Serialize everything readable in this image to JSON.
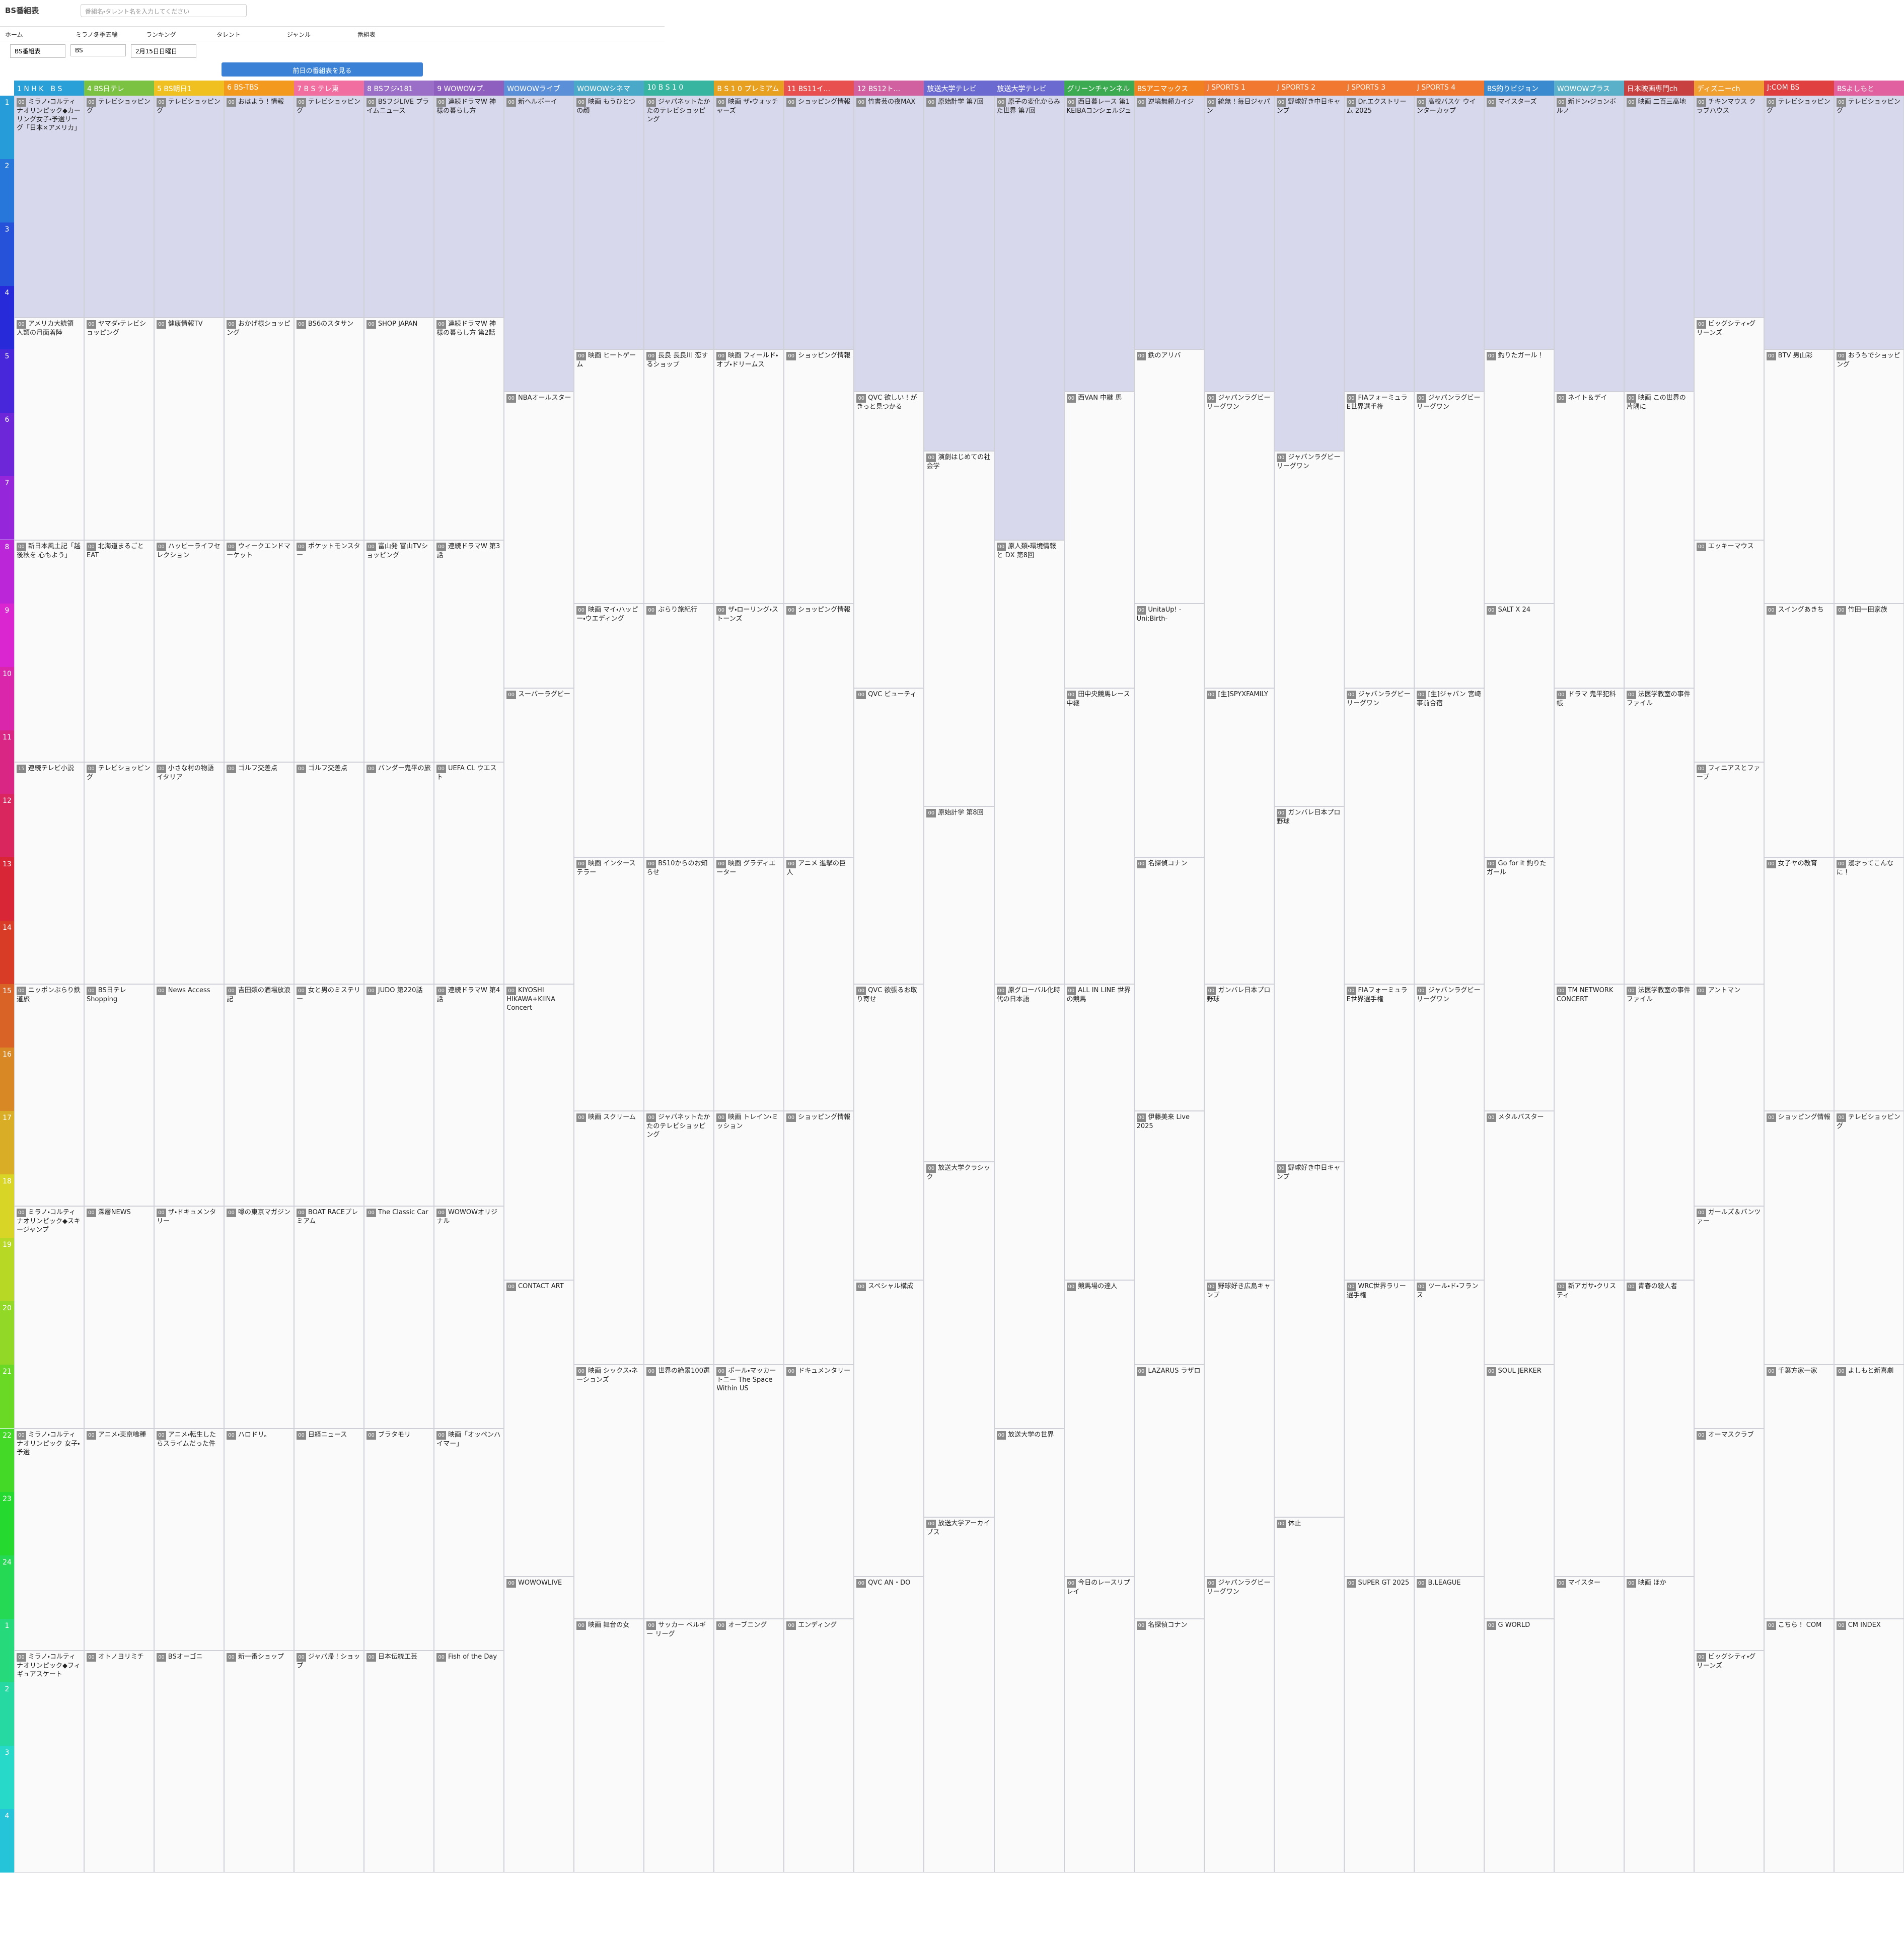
{
  "header": {
    "logo": "BS番組表",
    "search_placeholder": "番組名・タレント名を入力してください"
  },
  "nav": [
    "ホーム",
    "ミラノ冬季五輪",
    "ランキング",
    "タレント",
    "ジャンル",
    "番組表"
  ],
  "selectors": [
    "BS番組表",
    "BS",
    "2月15日日曜日"
  ],
  "prev_button": "前日の番組表を見る",
  "hours": [
    "1",
    "2",
    "3",
    "4",
    "5",
    "6",
    "7",
    "8",
    "9",
    "10",
    "11",
    "12",
    "13",
    "14",
    "15",
    "16",
    "17",
    "18",
    "19",
    "20",
    "21",
    "22",
    "23",
    "24",
    "1",
    "2",
    "3",
    "4"
  ],
  "channels": [
    {
      "name": "1 N H K　B S",
      "color": "#2aa0d8",
      "programs": [
        {
          "minute": "00",
          "title": "ミラノ・コルティナオリンピック◆カーリング女子・予選リーグ「日本×アメリカ」"
        },
        {
          "minute": "00",
          "title": "アメリカ大統領 人類の月面着陸"
        },
        {
          "minute": "00",
          "title": "新日本風土記「越後秋を 心もよう」"
        },
        {
          "minute": "15",
          "title": "連続テレビ小説"
        },
        {
          "minute": "00",
          "title": "ニッポンぶらり鉄道旅"
        },
        {
          "minute": "00",
          "title": "ミラノ・コルティナオリンピック◆スキージャンプ"
        },
        {
          "minute": "00",
          "title": "ミラノ・コルティナオリンピック 女子・予選"
        },
        {
          "minute": "00",
          "title": "ミラノ・コルティナオリンピック◆フィギュアスケート"
        }
      ]
    },
    {
      "name": "4 BS日テレ",
      "color": "#7cc242",
      "programs": [
        {
          "minute": "00",
          "title": "テレビショッピング"
        },
        {
          "minute": "00",
          "title": "ヤマダ・テレビショッピング"
        },
        {
          "minute": "00",
          "title": "北海道まるごとEAT"
        },
        {
          "minute": "00",
          "title": "テレビショッピング"
        },
        {
          "minute": "00",
          "title": "BS日テレ Shopping"
        },
        {
          "minute": "00",
          "title": "深層NEWS"
        },
        {
          "minute": "00",
          "title": "アニメ・東京喰種"
        },
        {
          "minute": "00",
          "title": "オトノヨリミチ"
        }
      ]
    },
    {
      "name": "5 BS朝日1",
      "color": "#f0c020",
      "programs": [
        {
          "minute": "00",
          "title": "テレビショッピング"
        },
        {
          "minute": "00",
          "title": "健康情報TV"
        },
        {
          "minute": "00",
          "title": "ハッピーライフセレクション"
        },
        {
          "minute": "00",
          "title": "小さな村の物語 イタリア"
        },
        {
          "minute": "00",
          "title": "News Access"
        },
        {
          "minute": "00",
          "title": "ザ・ドキュメンタリー"
        },
        {
          "minute": "00",
          "title": "アニメ・転生したらスライムだった件"
        },
        {
          "minute": "00",
          "title": "BSオーゴニ"
        }
      ]
    },
    {
      "name": "6 BS-TBS",
      "color": "#f39a1e",
      "programs": [
        {
          "minute": "00",
          "title": "おはよう！情報"
        },
        {
          "minute": "00",
          "title": "おかげ様ショッピング"
        },
        {
          "minute": "00",
          "title": "ウィークエンドマーケット"
        },
        {
          "minute": "00",
          "title": "ゴルフ交差点"
        },
        {
          "minute": "00",
          "title": "吉田類の酒場放浪記"
        },
        {
          "minute": "00",
          "title": "噂の東京マガジン"
        },
        {
          "minute": "00",
          "title": "ハロドリ。"
        },
        {
          "minute": "00",
          "title": "新一番ショップ"
        }
      ]
    },
    {
      "name": "7 B S テレ東",
      "color": "#f06ea0",
      "programs": [
        {
          "minute": "00",
          "title": "テレビショッピング"
        },
        {
          "minute": "00",
          "title": "BS6のスタサン"
        },
        {
          "minute": "00",
          "title": "ポケットモンスター"
        },
        {
          "minute": "00",
          "title": "ゴルフ交差点"
        },
        {
          "minute": "00",
          "title": "女と男のミステリー"
        },
        {
          "minute": "00",
          "title": "BOAT RACEプレミアム"
        },
        {
          "minute": "00",
          "title": "日経ニュース"
        },
        {
          "minute": "00",
          "title": "ジャパ帰！ショップ"
        }
      ]
    },
    {
      "name": "8 BSフジ・181",
      "color": "#9b6fc8",
      "programs": [
        {
          "minute": "00",
          "title": "BSフジLIVE プライムニュース"
        },
        {
          "minute": "00",
          "title": "SHOP JAPAN"
        },
        {
          "minute": "00",
          "title": "富山発 富山TVショッピング"
        },
        {
          "minute": "00",
          "title": "パンダー鬼平の旅"
        },
        {
          "minute": "00",
          "title": "JUDO 第220話"
        },
        {
          "minute": "00",
          "title": "The Classic Car"
        },
        {
          "minute": "00",
          "title": "ブラタモリ"
        },
        {
          "minute": "00",
          "title": "日本伝統工芸"
        }
      ]
    },
    {
      "name": "9 WOWOWプ.",
      "color": "#8f5fc0",
      "programs": [
        {
          "minute": "00",
          "title": "連続ドラマW 神様の暮らし方"
        },
        {
          "minute": "00",
          "title": "連続ドラマW 神様の暮らし方 第2話"
        },
        {
          "minute": "00",
          "title": "連続ドラマW 第3話"
        },
        {
          "minute": "00",
          "title": "UEFA CL ウエスト"
        },
        {
          "minute": "00",
          "title": "連続ドラマW 第4話"
        },
        {
          "minute": "00",
          "title": "WOWOWオリジナル"
        },
        {
          "minute": "00",
          "title": "映画「オッペンハイマー」"
        },
        {
          "minute": "00",
          "title": "Fish of the Day"
        }
      ]
    },
    {
      "name": "WOWOWライブ",
      "color": "#5b8fd8",
      "programs": [
        {
          "minute": "00",
          "title": "新ヘルボーイ"
        },
        {
          "minute": "00",
          "title": "NBAオールスター"
        },
        {
          "minute": "00",
          "title": "スーパーラグビー"
        },
        {
          "minute": "00",
          "title": "KIYOSHI HIKAWA+KIINA Concert"
        },
        {
          "minute": "00",
          "title": "CONTACT ART"
        },
        {
          "minute": "00",
          "title": "WOWOWLIVE"
        }
      ]
    },
    {
      "name": "WOWOWシネマ",
      "color": "#4aa8c8",
      "programs": [
        {
          "minute": "00",
          "title": "映画 もうひとつの顔"
        },
        {
          "minute": "00",
          "title": "映画 ヒートゲーム"
        },
        {
          "minute": "00",
          "title": "映画 マイ・ハッピー・ウエディング"
        },
        {
          "minute": "00",
          "title": "映画 インターステラー"
        },
        {
          "minute": "00",
          "title": "映画 スクリーム"
        },
        {
          "minute": "00",
          "title": "映画 シックス・ネーションズ"
        },
        {
          "minute": "00",
          "title": "映画 舞台の女"
        }
      ]
    },
    {
      "name": "10 B S 1 0",
      "color": "#37b5a0",
      "programs": [
        {
          "minute": "00",
          "title": "ジャパネットたかたのテレビショッピング"
        },
        {
          "minute": "00",
          "title": "長良 長良川 恋するショップ"
        },
        {
          "minute": "00",
          "title": "ぶらり旅紀行"
        },
        {
          "minute": "00",
          "title": "BS10からのお知らせ"
        },
        {
          "minute": "00",
          "title": "ジャパネットたかたのテレビショッピング"
        },
        {
          "minute": "00",
          "title": "世界の絶景100選"
        },
        {
          "minute": "00",
          "title": "サッカー ベルギー リーグ"
        }
      ]
    },
    {
      "name": "B S 1 0 プレミアム",
      "color": "#e8a020",
      "programs": [
        {
          "minute": "00",
          "title": "映画 ザ・ウォッチャーズ"
        },
        {
          "minute": "00",
          "title": "映画 フィールド・オブ・ドリームス"
        },
        {
          "minute": "00",
          "title": "ザ・ローリング・ストーンズ"
        },
        {
          "minute": "00",
          "title": "映画 グラディエーター"
        },
        {
          "minute": "00",
          "title": "映画 トレイン・ミッション"
        },
        {
          "minute": "00",
          "title": "ポール・マッカートニー The Space Within US"
        },
        {
          "minute": "00",
          "title": "オーブニング"
        }
      ]
    },
    {
      "name": "11 BS11イ...",
      "color": "#e85050",
      "programs": [
        {
          "minute": "00",
          "title": "ショッピング情報"
        },
        {
          "minute": "00",
          "title": "ショッピング情報"
        },
        {
          "minute": "00",
          "title": "ショッピング情報"
        },
        {
          "minute": "00",
          "title": "アニメ 進撃の巨人"
        },
        {
          "minute": "00",
          "title": "ショッピング情報"
        },
        {
          "minute": "00",
          "title": "ドキュメンタリー"
        },
        {
          "minute": "00",
          "title": "エンディング"
        }
      ]
    },
    {
      "name": "12 BS12ト...",
      "color": "#d060a0",
      "programs": [
        {
          "minute": "00",
          "title": "竹書芸の夜MAX"
        },
        {
          "minute": "00",
          "title": "QVC 欲しい！がきっと見つかる"
        },
        {
          "minute": "00",
          "title": "QVC ビューティ"
        },
        {
          "minute": "00",
          "title": "QVC 欲張るお取り寄せ"
        },
        {
          "minute": "00",
          "title": "スペシャル構成"
        },
        {
          "minute": "00",
          "title": "QVC AN・DO"
        }
      ]
    },
    {
      "name": "放送大学テレビ",
      "color": "#6a6ad0",
      "programs": [
        {
          "minute": "00",
          "title": "原始計学 第7回"
        },
        {
          "minute": "00",
          "title": "演劇はじめての社会学"
        },
        {
          "minute": "00",
          "title": "原始計学 第8回"
        },
        {
          "minute": "00",
          "title": "放送大学クラシック"
        },
        {
          "minute": "00",
          "title": "放送大学アーカイブス"
        }
      ]
    },
    {
      "name": "放送大学テレビ",
      "color": "#6a6ad0",
      "programs": [
        {
          "minute": "00",
          "title": "原子の変化からみた世界 第7回"
        },
        {
          "minute": "00",
          "title": "原人類・環境情報と DX 第8回"
        },
        {
          "minute": "00",
          "title": "原グローバル化時代の日本語"
        },
        {
          "minute": "00",
          "title": "放送大学の世界"
        }
      ]
    },
    {
      "name": "グリーンチャンネル",
      "color": "#3caa50",
      "programs": [
        {
          "minute": "00",
          "title": "西日暮レース 第1 KEIBAコンシェルジュ"
        },
        {
          "minute": "00",
          "title": "西VAN 中継 馬"
        },
        {
          "minute": "00",
          "title": "田中央競馬レース中継"
        },
        {
          "minute": "00",
          "title": "ALL IN LINE 世界の競馬"
        },
        {
          "minute": "00",
          "title": "競馬場の達人"
        },
        {
          "minute": "00",
          "title": "今日のレースリプレイ"
        }
      ]
    },
    {
      "name": "BSアニマックス",
      "color": "#f08020",
      "programs": [
        {
          "minute": "00",
          "title": "逆境無頼カイジ"
        },
        {
          "minute": "00",
          "title": "鉄のアリバ"
        },
        {
          "minute": "00",
          "title": "UnitaUp! -Uni:Birth-"
        },
        {
          "minute": "00",
          "title": "名探偵コナン"
        },
        {
          "minute": "00",
          "title": "伊藤美来 Live 2025"
        },
        {
          "minute": "00",
          "title": "LAZARUS ラザロ"
        },
        {
          "minute": "00",
          "title": "名探偵コナン"
        }
      ]
    },
    {
      "name": "J SPORTS 1",
      "color": "#f07830",
      "programs": [
        {
          "minute": "00",
          "title": "統無！毎日ジャパン"
        },
        {
          "minute": "00",
          "title": "ジャパンラグビー リーグワン"
        },
        {
          "minute": "00",
          "title": "[生]SPYXFAMILY"
        },
        {
          "minute": "00",
          "title": "ガンバレ日本プロ野球"
        },
        {
          "minute": "00",
          "title": "野球好き広島キャンプ"
        },
        {
          "minute": "00",
          "title": "ジャパンラグビー リーグワン"
        }
      ]
    },
    {
      "name": "J SPORTS 2",
      "color": "#f07830",
      "programs": [
        {
          "minute": "00",
          "title": "野球好き中日キャンプ"
        },
        {
          "minute": "00",
          "title": "ジャパンラグビー リーグワン"
        },
        {
          "minute": "00",
          "title": "ガンバレ日本プロ野球"
        },
        {
          "minute": "00",
          "title": "野球好き中日キャンプ"
        },
        {
          "minute": "00",
          "title": "休止"
        }
      ]
    },
    {
      "name": "J SPORTS 3",
      "color": "#f07830",
      "programs": [
        {
          "minute": "00",
          "title": "Dr.エクストリーム 2025"
        },
        {
          "minute": "00",
          "title": "FIAフォーミュラE世界選手権"
        },
        {
          "minute": "00",
          "title": "ジャパンラグビー リーグワン"
        },
        {
          "minute": "00",
          "title": "FIAフォーミュラE世界選手権"
        },
        {
          "minute": "00",
          "title": "WRC世界ラリー選手権"
        },
        {
          "minute": "00",
          "title": "SUPER GT 2025"
        }
      ]
    },
    {
      "name": "J SPORTS 4",
      "color": "#f07830",
      "programs": [
        {
          "minute": "00",
          "title": "高校バスケ ウインターカップ"
        },
        {
          "minute": "00",
          "title": "ジャパンラグビー リーグワン"
        },
        {
          "minute": "00",
          "title": "[生]ジャパン 宮崎事前合宿"
        },
        {
          "minute": "00",
          "title": "ジャパンラグビー リーグワン"
        },
        {
          "minute": "00",
          "title": "ツール・ド・フランス"
        },
        {
          "minute": "00",
          "title": "B.LEAGUE"
        }
      ]
    },
    {
      "name": "BS釣りビジョン",
      "color": "#3a8ad0",
      "programs": [
        {
          "minute": "00",
          "title": "マイスターズ"
        },
        {
          "minute": "00",
          "title": "釣りたガール！"
        },
        {
          "minute": "00",
          "title": "SALT X 24"
        },
        {
          "minute": "00",
          "title": "Go for it 釣りたガール"
        },
        {
          "minute": "00",
          "title": "メタルバスター"
        },
        {
          "minute": "00",
          "title": "SOUL JERKER"
        },
        {
          "minute": "00",
          "title": "G WORLD"
        }
      ]
    },
    {
      "name": "WOWOWプラス",
      "color": "#5ab0c8",
      "programs": [
        {
          "minute": "00",
          "title": "新ドン・ジョンボルノ"
        },
        {
          "minute": "00",
          "title": "ネイト＆デイ"
        },
        {
          "minute": "00",
          "title": "ドラマ 鬼平犯科帳"
        },
        {
          "minute": "00",
          "title": "TM NETWORK CONCERT"
        },
        {
          "minute": "00",
          "title": "新アガサ・クリスティ"
        },
        {
          "minute": "00",
          "title": "マイスター"
        }
      ]
    },
    {
      "name": "日本映画専門ch",
      "color": "#c84040",
      "programs": [
        {
          "minute": "00",
          "title": "映画 二百三高地"
        },
        {
          "minute": "00",
          "title": "映画 この世界の片隅に"
        },
        {
          "minute": "00",
          "title": "法医学教室の事件ファイル"
        },
        {
          "minute": "00",
          "title": "法医学教室の事件ファイル"
        },
        {
          "minute": "00",
          "title": "青春の殺人者"
        },
        {
          "minute": "00",
          "title": "映画 ほか"
        }
      ]
    },
    {
      "name": "ディズニーch",
      "color": "#f0a030",
      "programs": [
        {
          "minute": "00",
          "title": "チキンマウス クラブハウス"
        },
        {
          "minute": "00",
          "title": "ビッグシティ・グリーンズ"
        },
        {
          "minute": "00",
          "title": "エッキーマウス"
        },
        {
          "minute": "00",
          "title": "フィニアスとファーブ"
        },
        {
          "minute": "00",
          "title": "アントマン"
        },
        {
          "minute": "00",
          "title": "ガールズ＆パンツァー"
        },
        {
          "minute": "00",
          "title": "オーマスクラブ"
        },
        {
          "minute": "00",
          "title": "ビッグシティ・グリーンズ"
        }
      ]
    },
    {
      "name": "J:COM BS",
      "color": "#e04040",
      "programs": [
        {
          "minute": "00",
          "title": "テレビショッピング"
        },
        {
          "minute": "00",
          "title": "BTV 男山彩"
        },
        {
          "minute": "00",
          "title": "スイングあきち"
        },
        {
          "minute": "00",
          "title": "女子ヤの教育"
        },
        {
          "minute": "00",
          "title": "ショッピング情報"
        },
        {
          "minute": "00",
          "title": "千葉方家一家"
        },
        {
          "minute": "00",
          "title": "こちら！ COM"
        }
      ]
    },
    {
      "name": "BSよしもと",
      "color": "#e060a0",
      "programs": [
        {
          "minute": "00",
          "title": "テレビショッピング"
        },
        {
          "minute": "00",
          "title": "おうちでショッピング"
        },
        {
          "minute": "00",
          "title": "竹田一田家族"
        },
        {
          "minute": "00",
          "title": "漫才ってこんなに！"
        },
        {
          "minute": "00",
          "title": "テレビショッピング"
        },
        {
          "minute": "00",
          "title": "よしもと新喜劇"
        },
        {
          "minute": "00",
          "title": "CM INDEX"
        }
      ]
    }
  ]
}
